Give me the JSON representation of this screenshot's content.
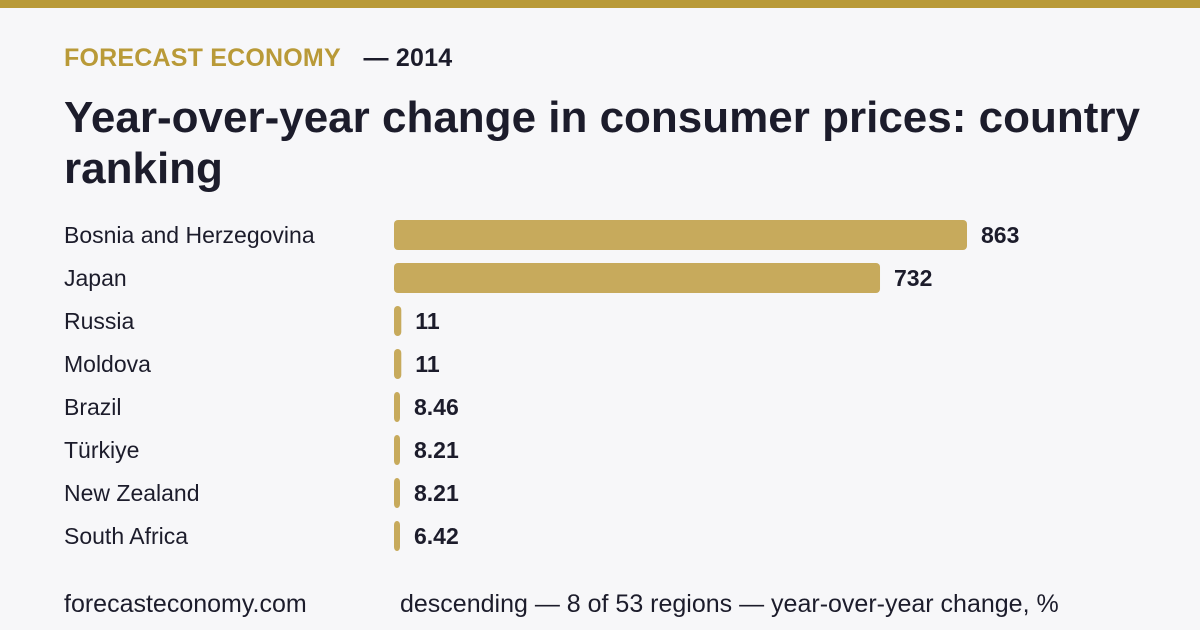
{
  "header": {
    "brand": "FORECAST ECONOMY",
    "year_label": "— 2014",
    "title": "Year-over-year change in consumer prices: country ranking"
  },
  "footer": {
    "site": "forecasteconomy.com",
    "note": "descending — 8 of 53 regions — year-over-year change, %"
  },
  "colors": {
    "accent": "#b99a38",
    "bar": "#c7aa5c",
    "text": "#1c1c2b",
    "background": "#f7f7f9"
  },
  "chart_data": {
    "type": "bar",
    "orientation": "horizontal",
    "title": "Year-over-year change in consumer prices: country ranking",
    "categories": [
      "Bosnia and Herzegovina",
      "Japan",
      "Russia",
      "Moldova",
      "Brazil",
      "Türkiye",
      "New Zealand",
      "South Africa"
    ],
    "values": [
      863,
      732,
      11,
      11,
      8.46,
      8.21,
      8.21,
      6.42
    ],
    "value_labels": [
      "863",
      "732",
      "11",
      "11",
      "8.46",
      "8.21",
      "8.21",
      "6.42"
    ],
    "xlim": [
      0,
      863
    ],
    "grid": false,
    "sort": "descending"
  }
}
